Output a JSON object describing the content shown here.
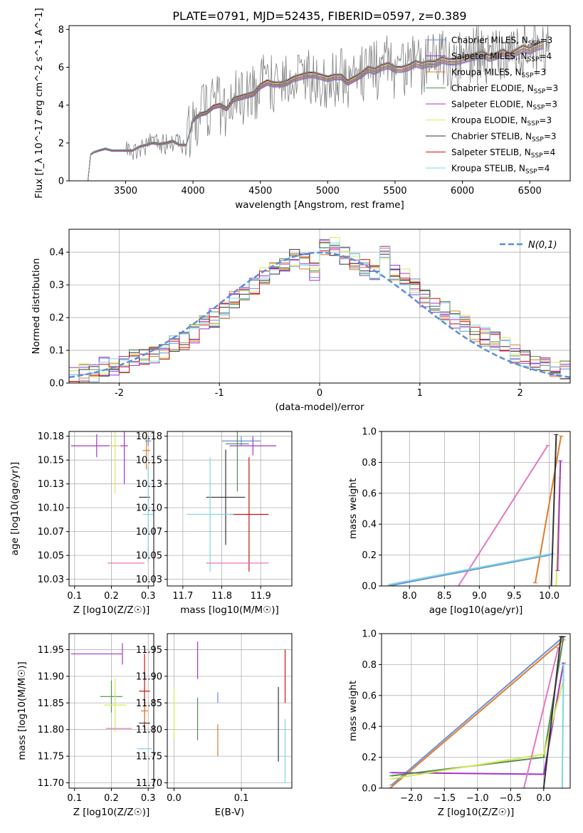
{
  "title": "PLATE=0791, MJD=52435, FIBERID=0597, z=0.389",
  "legend_spectrum": [
    {
      "label": "Chabrier MILES, N_SSP=3",
      "color": "#6b8fd6"
    },
    {
      "label": "Salpeter MILES, N_SSP=4",
      "color": "#9932cc"
    },
    {
      "label": "Kroupa MILES, N_SSP=3",
      "color": "#e07b2a"
    },
    {
      "label": "Chabrier ELODIE, N_SSP=3",
      "color": "#4f8f4f"
    },
    {
      "label": "Salpeter ELODIE, N_SSP=3",
      "color": "#a335c9"
    },
    {
      "label": "Kroupa ELODIE, N_SSP=3",
      "color": "#d7e85a"
    },
    {
      "label": "Chabrier STELIB, N_SSP=3",
      "color": "#333333"
    },
    {
      "label": "Salpeter STELIB, N_SSP=4",
      "color": "#cc1111"
    },
    {
      "label": "Kroupa STELIB, N_SSP=4",
      "color": "#7fd6e0"
    }
  ],
  "legend_hist": "N(0,1)",
  "chart_data": [
    {
      "type": "line",
      "id": "spectrum",
      "xlabel": "wavelength [Angstrom, rest frame]",
      "ylabel": "Flux [f_λ 10^-17 erg cm^-2 s^-1 A^-1]",
      "xlim": [
        3080,
        6800
      ],
      "ylim": [
        0,
        8.2
      ],
      "xticks": [
        3500,
        4000,
        4500,
        5000,
        5500,
        6000,
        6500
      ],
      "yticks": [
        0,
        2,
        4,
        6,
        8
      ],
      "data_color": "#808080",
      "x": [
        3220,
        3240,
        3260,
        3300,
        3350,
        3400,
        3450,
        3500,
        3550,
        3600,
        3650,
        3700,
        3750,
        3800,
        3850,
        3900,
        3950,
        4000,
        4050,
        4100,
        4150,
        4200,
        4250,
        4300,
        4350,
        4400,
        4450,
        4500,
        4550,
        4600,
        4650,
        4700,
        4750,
        4800,
        4850,
        4900,
        4950,
        5000,
        5050,
        5100,
        5150,
        5200,
        5250,
        5300,
        5350,
        5400,
        5450,
        5500,
        5550,
        5600,
        5650,
        5700,
        5750,
        5800,
        5850,
        5900,
        5950,
        6000,
        6050,
        6100,
        6150,
        6200,
        6250,
        6300,
        6350,
        6400,
        6450,
        6500,
        6550,
        6600
      ],
      "y": [
        0,
        1.4,
        1.5,
        1.6,
        1.7,
        1.6,
        1.6,
        1.6,
        1.6,
        1.8,
        1.9,
        2.0,
        1.95,
        2.0,
        2.1,
        1.9,
        1.9,
        3.2,
        3.5,
        3.6,
        3.9,
        4.0,
        3.8,
        4.3,
        4.4,
        4.5,
        4.6,
        5.0,
        5.2,
        5.1,
        5.1,
        5.2,
        5.4,
        5.5,
        5.6,
        5.6,
        5.5,
        5.4,
        5.5,
        5.5,
        5.2,
        5.4,
        5.6,
        5.9,
        5.8,
        6.0,
        6.1,
        5.9,
        5.9,
        6.0,
        6.2,
        6.1,
        6.2,
        6.2,
        6.4,
        6.3,
        6.3,
        6.4,
        6.5,
        6.6,
        6.7,
        6.5,
        6.6,
        6.8,
        6.6,
        6.8,
        7.0,
        6.9,
        7.1,
        7.2
      ]
    },
    {
      "type": "line",
      "id": "residual-histogram",
      "xlabel": "(data-model)/error",
      "ylabel": "Normed distribution",
      "xlim": [
        -2.5,
        2.5
      ],
      "ylim": [
        0,
        0.47
      ],
      "xticks": [
        -2,
        -1,
        0,
        1,
        2
      ],
      "yticks": [
        0.0,
        0.1,
        0.2,
        0.3,
        0.4
      ],
      "bins": [
        -2.5,
        -2.4,
        -2.3,
        -2.2,
        -2.1,
        -2.0,
        -1.9,
        -1.8,
        -1.7,
        -1.6,
        -1.5,
        -1.4,
        -1.3,
        -1.2,
        -1.1,
        -1.0,
        -0.9,
        -0.8,
        -0.7,
        -0.6,
        -0.5,
        -0.4,
        -0.3,
        -0.2,
        -0.1,
        0.0,
        0.1,
        0.2,
        0.3,
        0.4,
        0.5,
        0.6,
        0.7,
        0.8,
        0.9,
        1.0,
        1.1,
        1.2,
        1.3,
        1.4,
        1.5,
        1.6,
        1.7,
        1.8,
        1.9,
        2.0,
        2.1,
        2.2,
        2.3,
        2.4,
        2.5
      ],
      "hist_values": [
        0.02,
        0.03,
        0.03,
        0.05,
        0.05,
        0.06,
        0.08,
        0.08,
        0.09,
        0.1,
        0.12,
        0.13,
        0.15,
        0.18,
        0.2,
        0.22,
        0.26,
        0.27,
        0.29,
        0.33,
        0.34,
        0.36,
        0.38,
        0.37,
        0.34,
        0.41,
        0.42,
        0.39,
        0.37,
        0.35,
        0.33,
        0.39,
        0.34,
        0.32,
        0.29,
        0.26,
        0.24,
        0.22,
        0.19,
        0.18,
        0.15,
        0.14,
        0.13,
        0.11,
        0.09,
        0.08,
        0.07,
        0.05,
        0.04,
        0.04
      ],
      "normal_curve": "N(0,1)"
    },
    {
      "type": "scatter",
      "id": "age-vs-Z",
      "xlabel": "Z [log10(Z/Z☉)]",
      "ylabel": "age [log10(age/yr)]",
      "xlim": [
        0.085,
        0.315
      ],
      "ylim": [
        10.018,
        10.18
      ],
      "xticks": [
        0.1,
        0.2,
        0.3
      ],
      "yticks": [
        10.025,
        10.05,
        10.075,
        10.1,
        10.125,
        10.15,
        10.175
      ],
      "points": [
        {
          "x": 0.16,
          "y": 10.165,
          "xerr": 0.07,
          "yerr": 0.012,
          "c": "#a335c9"
        },
        {
          "x": 0.21,
          "y": 10.165,
          "xerr": 0.015,
          "yerr": 0.05,
          "c": "#d7e85a"
        },
        {
          "x": 0.235,
          "y": 10.165,
          "xerr": 0.01,
          "yerr": 0.04,
          "c": "#a335c9"
        },
        {
          "x": 0.295,
          "y": 10.16,
          "xerr": 0.01,
          "yerr": 0.02,
          "c": "#e07b2a"
        },
        {
          "x": 0.29,
          "y": 10.111,
          "xerr": 0.015,
          "yerr": 0.0,
          "c": "#333333"
        },
        {
          "x": 0.3,
          "y": 10.093,
          "xerr": 0.015,
          "yerr": 0.05,
          "c": "#7fd6e0"
        },
        {
          "x": 0.24,
          "y": 10.042,
          "xerr": 0.05,
          "yerr": 0.0,
          "c": "#e377c2"
        },
        {
          "x": 0.3,
          "y": 10.17,
          "xerr": 0.008,
          "yerr": 0.005,
          "c": "#6b8fd6"
        }
      ]
    },
    {
      "type": "scatter",
      "id": "age-vs-mass",
      "xlabel": "mass [log10(M/M☉)]",
      "ylabel": "",
      "xlim": [
        11.66,
        11.98
      ],
      "ylim": [
        10.018,
        10.18
      ],
      "xticks": [
        11.7,
        11.8,
        11.9
      ],
      "yticks": [
        10.025,
        10.05,
        10.075,
        10.1,
        10.125,
        10.15,
        10.175
      ],
      "points": [
        {
          "x": 11.85,
          "y": 10.17,
          "xerr": 0.05,
          "yerr": 0.005,
          "c": "#6b8fd6"
        },
        {
          "x": 11.88,
          "y": 10.165,
          "xerr": 0.06,
          "yerr": 0.01,
          "c": "#a335c9"
        },
        {
          "x": 11.84,
          "y": 10.167,
          "xerr": 0.03,
          "yerr": 0.05,
          "c": "#4f8f4f"
        },
        {
          "x": 11.81,
          "y": 10.111,
          "xerr": 0.05,
          "yerr": 0.05,
          "c": "#333333"
        },
        {
          "x": 11.87,
          "y": 10.093,
          "xerr": 0.05,
          "yerr": 0.06,
          "c": "#cc1111"
        },
        {
          "x": 11.77,
          "y": 10.093,
          "xerr": 0.06,
          "yerr": 0.06,
          "c": "#7fd6e0"
        },
        {
          "x": 11.84,
          "y": 10.042,
          "xerr": 0.08,
          "yerr": 0.0,
          "c": "#e377c2"
        }
      ]
    },
    {
      "type": "line",
      "id": "massweight-vs-age",
      "xlabel": "age [log10(age/yr)]",
      "ylabel": "mass weight",
      "xlim": [
        7.6,
        10.3
      ],
      "ylim": [
        0,
        1
      ],
      "xticks": [
        8.0,
        8.5,
        9.0,
        9.5,
        10.0
      ],
      "yticks": [
        0.0,
        0.2,
        0.4,
        0.6,
        0.8,
        1.0
      ],
      "series_lines": [
        {
          "c": "#e377c2",
          "x": [
            8.7,
            9.98
          ],
          "y": [
            0.0,
            0.91
          ]
        },
        {
          "c": "#e07b2a",
          "x": [
            9.8,
            10.17
          ],
          "y": [
            0.02,
            0.97
          ]
        },
        {
          "c": "#6b8fd6",
          "x": [
            7.7,
            10.0
          ],
          "y": [
            0.0,
            0.2
          ]
        },
        {
          "c": "#7fd6e0",
          "x": [
            7.72,
            10.05
          ],
          "y": [
            0.01,
            0.21
          ]
        },
        {
          "c": "#333333",
          "x": [
            10.03,
            10.1
          ],
          "y": [
            0.0,
            0.98
          ]
        },
        {
          "c": "#d7e85a",
          "x": [
            10.1,
            10.15
          ],
          "y": [
            0.0,
            0.7
          ]
        },
        {
          "c": "#a335c9",
          "x": [
            10.12,
            10.16
          ],
          "y": [
            0.1,
            0.81
          ]
        }
      ]
    },
    {
      "type": "scatter",
      "id": "mass-vs-Z",
      "xlabel": "Z [log10(Z/Z☉)]",
      "ylabel": "mass [log10(M/M☉)]",
      "xlim": [
        0.085,
        0.315
      ],
      "ylim": [
        11.69,
        11.98
      ],
      "xticks": [
        0.1,
        0.2,
        0.3
      ],
      "yticks": [
        11.7,
        11.75,
        11.8,
        11.85,
        11.9,
        11.95
      ],
      "points": [
        {
          "x": 0.16,
          "y": 11.942,
          "xerr": 0.07,
          "yerr": 0.0,
          "c": "#a335c9"
        },
        {
          "x": 0.23,
          "y": 11.942,
          "xerr": 0.0,
          "yerr": 0.02,
          "c": "#a335c9"
        },
        {
          "x": 0.2,
          "y": 11.862,
          "xerr": 0.03,
          "yerr": 0.03,
          "c": "#4f8f4f"
        },
        {
          "x": 0.21,
          "y": 11.846,
          "xerr": 0.03,
          "yerr": 0.05,
          "c": "#d7e85a"
        },
        {
          "x": 0.29,
          "y": 11.872,
          "xerr": 0.015,
          "yerr": 0.07,
          "c": "#cc1111"
        },
        {
          "x": 0.29,
          "y": 11.812,
          "xerr": 0.015,
          "yerr": 0.0,
          "c": "#333333"
        },
        {
          "x": 0.22,
          "y": 11.802,
          "xerr": 0.035,
          "yerr": 0.0,
          "c": "#e377c2"
        },
        {
          "x": 0.29,
          "y": 11.764,
          "xerr": 0.02,
          "yerr": 0.0,
          "c": "#7fd6e0"
        },
        {
          "x": 0.29,
          "y": 11.835,
          "xerr": 0.01,
          "yerr": 0.02,
          "c": "#e07b2a"
        }
      ]
    },
    {
      "type": "scatter",
      "id": "mass-vs-EBV",
      "xlabel": "E(B-V)",
      "ylabel": "",
      "xlim": [
        -0.01,
        0.175
      ],
      "ylim": [
        11.69,
        11.98
      ],
      "xticks": [
        0.0,
        0.1
      ],
      "yticks": [
        11.7,
        11.75,
        11.8,
        11.85,
        11.9,
        11.95
      ],
      "points": [
        {
          "x": 0.0,
          "y": 11.83,
          "xerr": 0.0,
          "yerr": 0.05,
          "c": "#d7e85a"
        },
        {
          "x": 0.035,
          "y": 11.93,
          "xerr": 0.0,
          "yerr": 0.035,
          "c": "#a335c9"
        },
        {
          "x": 0.035,
          "y": 11.82,
          "xerr": 0.0,
          "yerr": 0.04,
          "c": "#4f8f4f"
        },
        {
          "x": 0.065,
          "y": 11.86,
          "xerr": 0.0,
          "yerr": 0.01,
          "c": "#6b8fd6"
        },
        {
          "x": 0.065,
          "y": 11.78,
          "xerr": 0.0,
          "yerr": 0.03,
          "c": "#e07b2a"
        },
        {
          "x": 0.155,
          "y": 11.81,
          "xerr": 0.0,
          "yerr": 0.07,
          "c": "#333333"
        },
        {
          "x": 0.165,
          "y": 11.9,
          "xerr": 0.0,
          "yerr": 0.05,
          "c": "#cc1111"
        },
        {
          "x": 0.165,
          "y": 11.76,
          "xerr": 0.0,
          "yerr": 0.06,
          "c": "#7fd6e0"
        }
      ]
    },
    {
      "type": "line",
      "id": "massweight-vs-Z",
      "xlabel": "Z [log10(Z/Z☉)]",
      "ylabel": "mass weight",
      "xlim": [
        -2.45,
        0.4
      ],
      "ylim": [
        0,
        1
      ],
      "xticks": [
        -2.0,
        -1.5,
        -1.0,
        -0.5,
        0.0
      ],
      "yticks": [
        0.0,
        0.2,
        0.4,
        0.6,
        0.8,
        1.0
      ],
      "series_lines": [
        {
          "c": "#6b8fd6",
          "x": [
            -2.3,
            0.3
          ],
          "y": [
            0.02,
            0.98
          ]
        },
        {
          "c": "#e07b2a",
          "x": [
            -2.32,
            0.3
          ],
          "y": [
            0.0,
            0.96
          ]
        },
        {
          "c": "#a335c9",
          "x": [
            -2.3,
            0.0,
            0.3
          ],
          "y": [
            0.1,
            0.09,
            0.81
          ]
        },
        {
          "c": "#4f8f4f",
          "x": [
            -2.3,
            0.0,
            0.3
          ],
          "y": [
            0.08,
            0.2,
            0.98
          ]
        },
        {
          "c": "#d7e85a",
          "x": [
            -2.3,
            0.0,
            0.3
          ],
          "y": [
            0.06,
            0.22,
            0.7
          ]
        },
        {
          "c": "#e377c2",
          "x": [
            -0.3,
            0.22
          ],
          "y": [
            0.0,
            0.91
          ]
        },
        {
          "c": "#333333",
          "x": [
            0.0,
            0.26,
            0.3
          ],
          "y": [
            0.0,
            0.98,
            0.98
          ]
        },
        {
          "c": "#7fd6e0",
          "x": [
            0.28,
            0.3
          ],
          "y": [
            0.0,
            0.8
          ]
        }
      ]
    }
  ]
}
